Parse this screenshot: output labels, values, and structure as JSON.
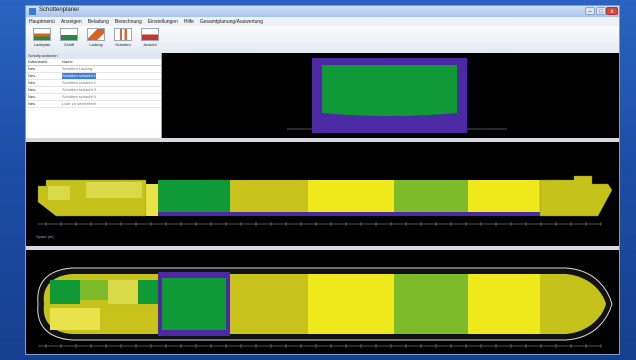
{
  "window": {
    "title": "Schottenplaner"
  },
  "window_controls": {
    "minimize": "–",
    "maximize": "□",
    "close": "x"
  },
  "menu": [
    "Hauptmenü",
    "Anzeigen",
    "Beladung",
    "Berechnung",
    "Einstellungen",
    "Hilfe",
    "Gesamtplanung/Auswertung"
  ],
  "toolbar": [
    {
      "label": "Ladeplan",
      "color": "#d9641e"
    },
    {
      "label": "Schiff",
      "color": "#2a8a3a"
    },
    {
      "label": "Ladung",
      "color": "#d9641e"
    },
    {
      "label": "Schotten",
      "color": "#cc6a3b"
    },
    {
      "label": "Ansicht",
      "color": "#c0392b"
    }
  ],
  "panel": {
    "header": "Schottpositionen",
    "columns": [
      "Datenbank",
      "Name"
    ],
    "rows": [
      {
        "c1": "Neu",
        "c2": "Schotten Ladung"
      },
      {
        "c1": "Neu",
        "c2": "Schotten schacht 1",
        "selected": true
      },
      {
        "c1": "Neu",
        "c2": "Schotten schacht 2"
      },
      {
        "c1": "Neu",
        "c2": "Schotten schacht 3"
      },
      {
        "c1": "Neu",
        "c2": "Schotten schacht 4"
      },
      {
        "c1": "Neu",
        "c2": "Luke zu verbreitern"
      }
    ]
  },
  "colors": {
    "dark_green": "#0f9a37",
    "green": "#7dbb2a",
    "olive": "#c5c21c",
    "yellow": "#efe81a",
    "pale_yellow": "#d9d94a",
    "purple_border": "#4b2aa3",
    "grey_line": "#9aa0a8"
  },
  "holds": [
    {
      "color": "#0f9a37"
    },
    {
      "color": "#c9c21b"
    },
    {
      "color": "#efe81a"
    },
    {
      "color": "#7dbb2a"
    },
    {
      "color": "#efe81a"
    }
  ],
  "ruler": {
    "unit": "Spant (m)"
  }
}
